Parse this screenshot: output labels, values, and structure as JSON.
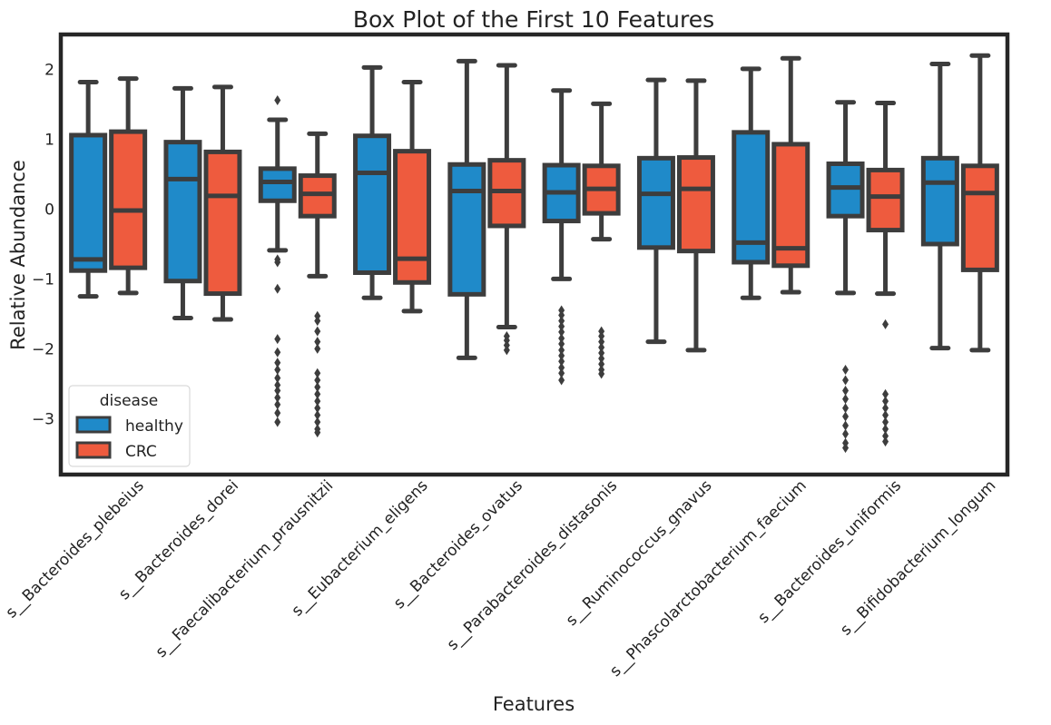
{
  "chart_data": {
    "type": "box",
    "title": "Box Plot of the First 10 Features",
    "xlabel": "Features",
    "ylabel": "Relative Abundance",
    "ylim": [
      -3.75,
      2.45
    ],
    "yticks": [
      -3,
      -2,
      -1,
      0,
      1,
      2
    ],
    "ytick_labels": [
      "−3",
      "−2",
      "−1",
      "0",
      "1",
      "2"
    ],
    "categories": [
      "s__Bacteroides_plebeius",
      "s__Bacteroides_dorei",
      "s__Faecalibacterium_prausnitzii",
      "s__Eubacterium_eligens",
      "s__Bacteroides_ovatus",
      "s__Parabacteroides_distasonis",
      "s__Ruminococcus_gnavus",
      "s__Phascolarctobacterium_faecium",
      "s__Bacteroides_uniformis",
      "s__Bifidobacterium_longum"
    ],
    "legend": {
      "title": "disease",
      "position": "lower-left"
    },
    "series": [
      {
        "name": "healthy",
        "color": "#1f8ac9",
        "boxes": [
          {
            "whislo": -1.25,
            "q1": -0.88,
            "med": -0.72,
            "q3": 1.06,
            "whishi": 1.82,
            "fliers": []
          },
          {
            "whislo": -1.56,
            "q1": -1.03,
            "med": 0.43,
            "q3": 0.96,
            "whishi": 1.73,
            "fliers": []
          },
          {
            "whislo": -0.59,
            "q1": 0.12,
            "med": 0.39,
            "q3": 0.58,
            "whishi": 1.28,
            "fliers": [
              1.56,
              -0.72,
              -0.76,
              -1.14,
              -1.86,
              -2.05,
              -2.2,
              -2.3,
              -2.42,
              -2.52,
              -2.6,
              -2.7,
              -2.8,
              -2.92,
              -3.05
            ]
          },
          {
            "whislo": -1.27,
            "q1": -0.91,
            "med": 0.52,
            "q3": 1.05,
            "whishi": 2.03,
            "fliers": []
          },
          {
            "whislo": -2.13,
            "q1": -1.22,
            "med": 0.26,
            "q3": 0.64,
            "whishi": 2.12,
            "fliers": []
          },
          {
            "whislo": -1.0,
            "q1": -0.17,
            "med": 0.24,
            "q3": 0.63,
            "whishi": 1.7,
            "fliers": [
              -1.45,
              -1.52,
              -1.6,
              -1.68,
              -1.76,
              -1.85,
              -1.93,
              -2.02,
              -2.1,
              -2.18,
              -2.27,
              -2.35,
              -2.45
            ]
          },
          {
            "whislo": -1.9,
            "q1": -0.55,
            "med": 0.22,
            "q3": 0.73,
            "whishi": 1.85,
            "fliers": []
          },
          {
            "whislo": -1.27,
            "q1": -0.76,
            "med": -0.48,
            "q3": 1.1,
            "whishi": 2.01,
            "fliers": []
          },
          {
            "whislo": -1.2,
            "q1": -0.1,
            "med": 0.31,
            "q3": 0.65,
            "whishi": 1.53,
            "fliers": [
              -2.3,
              -2.45,
              -2.6,
              -2.72,
              -2.85,
              -2.97,
              -3.1,
              -3.22,
              -3.35,
              -3.42
            ]
          },
          {
            "whislo": -1.99,
            "q1": -0.5,
            "med": 0.38,
            "q3": 0.73,
            "whishi": 2.08,
            "fliers": []
          }
        ]
      },
      {
        "name": "CRC",
        "color": "#ee5b3e",
        "boxes": [
          {
            "whislo": -1.2,
            "q1": -0.84,
            "med": -0.02,
            "q3": 1.11,
            "whishi": 1.87,
            "fliers": []
          },
          {
            "whislo": -1.58,
            "q1": -1.21,
            "med": 0.19,
            "q3": 0.82,
            "whishi": 1.75,
            "fliers": []
          },
          {
            "whislo": -0.96,
            "q1": -0.1,
            "med": 0.22,
            "q3": 0.48,
            "whishi": 1.08,
            "fliers": [
              -1.53,
              -1.6,
              -1.75,
              -1.9,
              -2.0,
              -2.35,
              -2.45,
              -2.55,
              -2.65,
              -2.75,
              -2.85,
              -2.95,
              -3.05,
              -3.15,
              -3.2
            ]
          },
          {
            "whislo": -1.46,
            "q1": -1.05,
            "med": -0.71,
            "q3": 0.83,
            "whishi": 1.82,
            "fliers": []
          },
          {
            "whislo": -1.69,
            "q1": -0.24,
            "med": 0.26,
            "q3": 0.7,
            "whishi": 2.06,
            "fliers": [
              -1.82,
              -1.88,
              -1.95,
              -2.02
            ]
          },
          {
            "whislo": -0.43,
            "q1": -0.06,
            "med": 0.29,
            "q3": 0.62,
            "whishi": 1.51,
            "fliers": [
              -1.75,
              -1.82,
              -1.9,
              -1.98,
              -2.06,
              -2.14,
              -2.22,
              -2.3,
              -2.36
            ]
          },
          {
            "whislo": -2.02,
            "q1": -0.6,
            "med": 0.29,
            "q3": 0.74,
            "whishi": 1.84,
            "fliers": []
          },
          {
            "whislo": -1.19,
            "q1": -0.81,
            "med": -0.56,
            "q3": 0.93,
            "whishi": 2.16,
            "fliers": []
          },
          {
            "whislo": -1.21,
            "q1": -0.3,
            "med": 0.18,
            "q3": 0.56,
            "whishi": 1.52,
            "fliers": [
              -1.65,
              -2.65,
              -2.75,
              -2.85,
              -2.95,
              -3.05,
              -3.15,
              -3.25,
              -3.33
            ]
          },
          {
            "whislo": -2.02,
            "q1": -0.87,
            "med": 0.23,
            "q3": 0.62,
            "whishi": 2.2,
            "fliers": []
          }
        ]
      }
    ]
  }
}
